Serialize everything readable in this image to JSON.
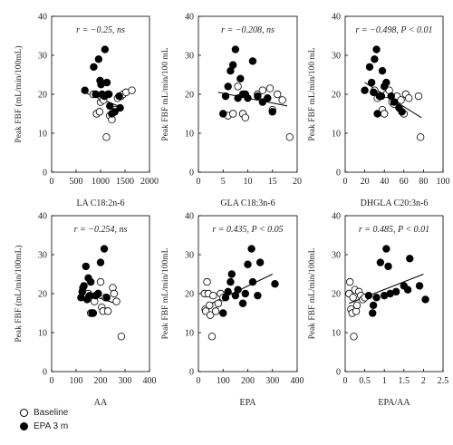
{
  "chart_data": [
    {
      "type": "scatter",
      "annotation": "r = −0.25, ns",
      "xlabel": "LA C18:2n-6",
      "ylabel": "Peak FBF  (mL/min/100mL)",
      "xlim": [
        0,
        2000
      ],
      "ylim": [
        0,
        40
      ],
      "xticks": [
        0,
        500,
        1000,
        1500,
        2000
      ],
      "yticks": [
        0,
        10,
        20,
        30,
        40
      ],
      "regression": [
        [
          700,
          20.3
        ],
        [
          1400,
          16.8
        ]
      ],
      "series": [
        {
          "name": "Baseline",
          "marker": "open",
          "points": [
            [
              850,
              20
            ],
            [
              920,
              15
            ],
            [
              980,
              15.5
            ],
            [
              1000,
              18
            ],
            [
              1030,
              19
            ],
            [
              1060,
              18.5
            ],
            [
              1120,
              9
            ],
            [
              1150,
              20
            ],
            [
              1190,
              14.5
            ],
            [
              1230,
              13.5
            ],
            [
              1300,
              16
            ],
            [
              1350,
              19
            ],
            [
              1420,
              19.5
            ],
            [
              1460,
              20
            ],
            [
              1520,
              20.5
            ],
            [
              1640,
              21
            ]
          ]
        },
        {
          "name": "EPA 3 m",
          "marker": "filled",
          "points": [
            [
              680,
              21
            ],
            [
              860,
              27
            ],
            [
              900,
              20
            ],
            [
              960,
              29
            ],
            [
              990,
              23.5
            ],
            [
              1010,
              22.5
            ],
            [
              1030,
              20
            ],
            [
              1080,
              19.5
            ],
            [
              1090,
              31.5
            ],
            [
              1130,
              23
            ],
            [
              1170,
              20
            ],
            [
              1190,
              17
            ],
            [
              1230,
              15
            ],
            [
              1290,
              15.5
            ],
            [
              1380,
              19.5
            ],
            [
              1400,
              16.5
            ]
          ]
        }
      ]
    },
    {
      "type": "scatter",
      "annotation": "r = −0.208, ns",
      "xlabel": "GLA C18:3n-6",
      "ylabel": "Peak FBF mL/min/100 mL",
      "xlim": [
        0,
        20
      ],
      "ylim": [
        0,
        40
      ],
      "xticks": [
        0,
        5,
        10,
        15,
        20
      ],
      "yticks": [
        0,
        10,
        20,
        30,
        40
      ],
      "regression": [
        [
          4,
          20.5
        ],
        [
          18,
          17
        ]
      ],
      "series": [
        {
          "name": "Baseline",
          "marker": "open",
          "points": [
            [
              6,
              14.5
            ],
            [
              7,
              15
            ],
            [
              8,
              22
            ],
            [
              9,
              15
            ],
            [
              9.5,
              14
            ],
            [
              12,
              20
            ],
            [
              13,
              21
            ],
            [
              14,
              19
            ],
            [
              14.5,
              21.5
            ],
            [
              15,
              16
            ],
            [
              16,
              20
            ],
            [
              17,
              18.5
            ],
            [
              18.5,
              9
            ]
          ]
        },
        {
          "name": "EPA 3 m",
          "marker": "filled",
          "points": [
            [
              5,
              15
            ],
            [
              5.5,
              19.5
            ],
            [
              6,
              22
            ],
            [
              6.5,
              26
            ],
            [
              7,
              27.5
            ],
            [
              7.5,
              31.5
            ],
            [
              8,
              19
            ],
            [
              8.5,
              24
            ],
            [
              9,
              20
            ],
            [
              9.5,
              20
            ],
            [
              10,
              19
            ],
            [
              11,
              28.5
            ],
            [
              12,
              19.5
            ],
            [
              13,
              18
            ],
            [
              14,
              19
            ],
            [
              15,
              15.5
            ]
          ]
        }
      ]
    },
    {
      "type": "scatter",
      "annotation": "r = −0.498,  P < 0.01",
      "xlabel": "DHGLA C20:3n-6",
      "ylabel": "Peak FBF mL/min/100 mL",
      "xlim": [
        0,
        100
      ],
      "ylim": [
        0,
        40
      ],
      "xticks": [
        0,
        20,
        40,
        60,
        80,
        100
      ],
      "yticks": [
        0,
        10,
        20,
        30,
        40
      ],
      "regression": [
        [
          20,
          23
        ],
        [
          78,
          14
        ]
      ],
      "series": [
        {
          "name": "Baseline",
          "marker": "open",
          "points": [
            [
              30,
              21
            ],
            [
              33,
              19
            ],
            [
              38,
              16
            ],
            [
              40,
              15
            ],
            [
              42,
              20
            ],
            [
              45,
              21
            ],
            [
              48,
              18
            ],
            [
              50,
              17.5
            ],
            [
              53,
              19.5
            ],
            [
              57,
              18.5
            ],
            [
              60,
              15
            ],
            [
              62,
              20
            ],
            [
              65,
              19
            ],
            [
              75,
              19.5
            ],
            [
              77,
              9
            ]
          ]
        },
        {
          "name": "EPA 3 m",
          "marker": "filled",
          "points": [
            [
              20,
              21
            ],
            [
              25,
              27
            ],
            [
              27,
              23
            ],
            [
              29,
              20.5
            ],
            [
              30,
              29
            ],
            [
              32,
              31.5
            ],
            [
              33,
              15
            ],
            [
              35,
              19.5
            ],
            [
              37,
              19.5
            ],
            [
              38,
              26
            ],
            [
              40,
              22
            ],
            [
              42,
              23
            ],
            [
              47,
              19.5
            ],
            [
              50,
              18
            ],
            [
              55,
              16.5
            ],
            [
              58,
              15.5
            ]
          ]
        }
      ]
    },
    {
      "type": "scatter",
      "annotation": "r = −0.254, ns",
      "xlabel": "AA",
      "ylabel": "Peak FBF  (mL/min/100mL)",
      "xlim": [
        0,
        400
      ],
      "ylim": [
        0,
        40
      ],
      "xticks": [
        0,
        100,
        200,
        300,
        400
      ],
      "yticks": [
        0,
        10,
        20,
        30,
        40
      ],
      "regression": [
        [
          120,
          20.5
        ],
        [
          260,
          17.5
        ]
      ],
      "series": [
        {
          "name": "Baseline",
          "marker": "open",
          "points": [
            [
              150,
              20
            ],
            [
              160,
              15
            ],
            [
              175,
              18
            ],
            [
              190,
              20
            ],
            [
              200,
              23
            ],
            [
              205,
              16.5
            ],
            [
              210,
              15.5
            ],
            [
              220,
              19
            ],
            [
              230,
              15.5
            ],
            [
              250,
              21.5
            ],
            [
              255,
              20
            ],
            [
              265,
              18
            ],
            [
              285,
              9
            ]
          ]
        },
        {
          "name": "EPA 3 m",
          "marker": "filled",
          "points": [
            [
              120,
              19
            ],
            [
              125,
              20.5
            ],
            [
              128,
              21.5
            ],
            [
              132,
              22
            ],
            [
              140,
              27
            ],
            [
              145,
              18.5
            ],
            [
              150,
              24
            ],
            [
              155,
              19.5
            ],
            [
              160,
              23
            ],
            [
              165,
              15
            ],
            [
              170,
              15
            ],
            [
              180,
              19.5
            ],
            [
              190,
              20
            ],
            [
              200,
              28
            ],
            [
              215,
              31.5
            ],
            [
              225,
              19
            ]
          ]
        }
      ]
    },
    {
      "type": "scatter",
      "annotation": "r = 0.435,  P < 0.05",
      "xlabel": "EPA",
      "ylabel": "Peak FBF mL/min/100mL",
      "xlim": [
        0,
        400
      ],
      "ylim": [
        0,
        40
      ],
      "xticks": [
        0,
        100,
        200,
        300,
        400
      ],
      "yticks": [
        0,
        10,
        20,
        30,
        40
      ],
      "regression": [
        [
          20,
          16.5
        ],
        [
          300,
          25
        ]
      ],
      "series": [
        {
          "name": "Baseline",
          "marker": "open",
          "points": [
            [
              25,
              20
            ],
            [
              28,
              16
            ],
            [
              30,
              15.5
            ],
            [
              35,
              23
            ],
            [
              40,
              20
            ],
            [
              45,
              17
            ],
            [
              48,
              14.5
            ],
            [
              55,
              9
            ],
            [
              60,
              19.5
            ],
            [
              70,
              15.5
            ],
            [
              80,
              17.5
            ],
            [
              90,
              20
            ],
            [
              100,
              19
            ]
          ]
        },
        {
          "name": "EPA 3 m",
          "marker": "filled",
          "points": [
            [
              100,
              15
            ],
            [
              110,
              19
            ],
            [
              120,
              20.5
            ],
            [
              130,
              23
            ],
            [
              135,
              25
            ],
            [
              150,
              19.5
            ],
            [
              160,
              21
            ],
            [
              180,
              17.5
            ],
            [
              190,
              20
            ],
            [
              200,
              27.5
            ],
            [
              215,
              31.5
            ],
            [
              220,
              23
            ],
            [
              240,
              19.5
            ],
            [
              250,
              28
            ],
            [
              310,
              22.5
            ]
          ]
        }
      ]
    },
    {
      "type": "scatter",
      "annotation": "r = 0.485,  P < 0.01",
      "xlabel": "EPA/AA",
      "ylabel": "Peak FBF mL/min/100mL",
      "xlim": [
        0,
        2.5
      ],
      "ylim": [
        0,
        40
      ],
      "xticks": [
        0,
        0.5,
        1,
        1.5,
        2,
        2.5
      ],
      "yticks": [
        0,
        10,
        20,
        30,
        40
      ],
      "regression": [
        [
          0.1,
          17.5
        ],
        [
          2.0,
          25
        ]
      ],
      "series": [
        {
          "name": "Baseline",
          "marker": "open",
          "points": [
            [
              0.1,
              20
            ],
            [
              0.12,
              23
            ],
            [
              0.15,
              16
            ],
            [
              0.18,
              15
            ],
            [
              0.2,
              19
            ],
            [
              0.22,
              9
            ],
            [
              0.25,
              21
            ],
            [
              0.28,
              15.5
            ],
            [
              0.3,
              17
            ],
            [
              0.35,
              20.5
            ],
            [
              0.4,
              19.5
            ],
            [
              0.45,
              18.5
            ],
            [
              0.5,
              19
            ]
          ]
        },
        {
          "name": "EPA 3 m",
          "marker": "filled",
          "points": [
            [
              0.6,
              19.5
            ],
            [
              0.7,
              15
            ],
            [
              0.72,
              17
            ],
            [
              0.8,
              19
            ],
            [
              0.9,
              28
            ],
            [
              1.0,
              19.5
            ],
            [
              1.05,
              31.5
            ],
            [
              1.1,
              27
            ],
            [
              1.15,
              20
            ],
            [
              1.3,
              20.5
            ],
            [
              1.5,
              22
            ],
            [
              1.6,
              21
            ],
            [
              1.65,
              29
            ],
            [
              1.9,
              22
            ],
            [
              2.05,
              18.5
            ]
          ]
        }
      ]
    }
  ],
  "legend": {
    "items": [
      {
        "label": "Baseline",
        "marker": "open"
      },
      {
        "label": "EPA 3 m",
        "marker": "filled"
      }
    ]
  }
}
